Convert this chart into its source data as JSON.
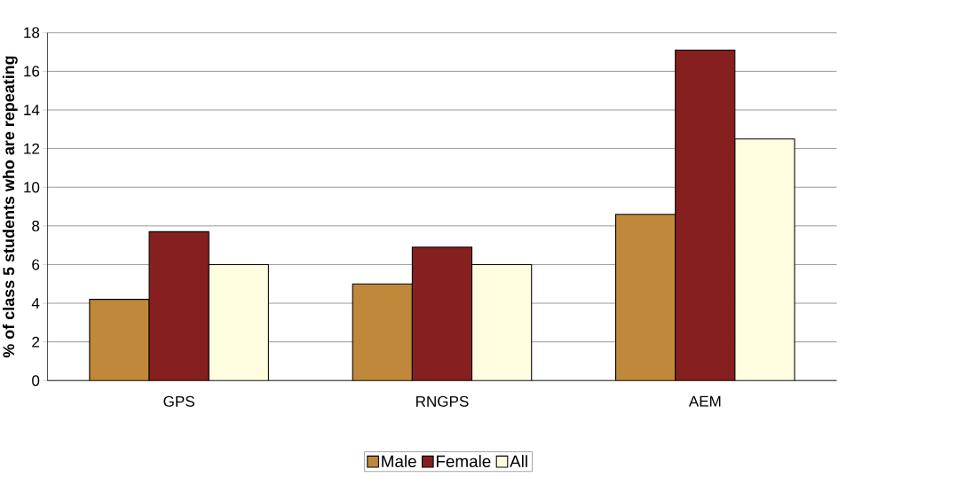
{
  "chart_data": {
    "type": "bar",
    "ylabel": "% of class 5 students who are repeating",
    "categories": [
      "GPS",
      "RNGPS",
      "AEM"
    ],
    "series": [
      {
        "name": "Male",
        "color": "#c0883a",
        "values": [
          4.2,
          5.0,
          8.6
        ]
      },
      {
        "name": "Female",
        "color": "#861f1f",
        "values": [
          7.7,
          6.9,
          17.1
        ]
      },
      {
        "name": "All",
        "color": "#fffde0",
        "values": [
          6.0,
          6.0,
          12.5
        ]
      }
    ],
    "ylim": [
      0,
      18
    ],
    "yticks": [
      0,
      2,
      4,
      6,
      8,
      10,
      12,
      14,
      16,
      18
    ],
    "grid": "y",
    "legend": "bottom"
  }
}
